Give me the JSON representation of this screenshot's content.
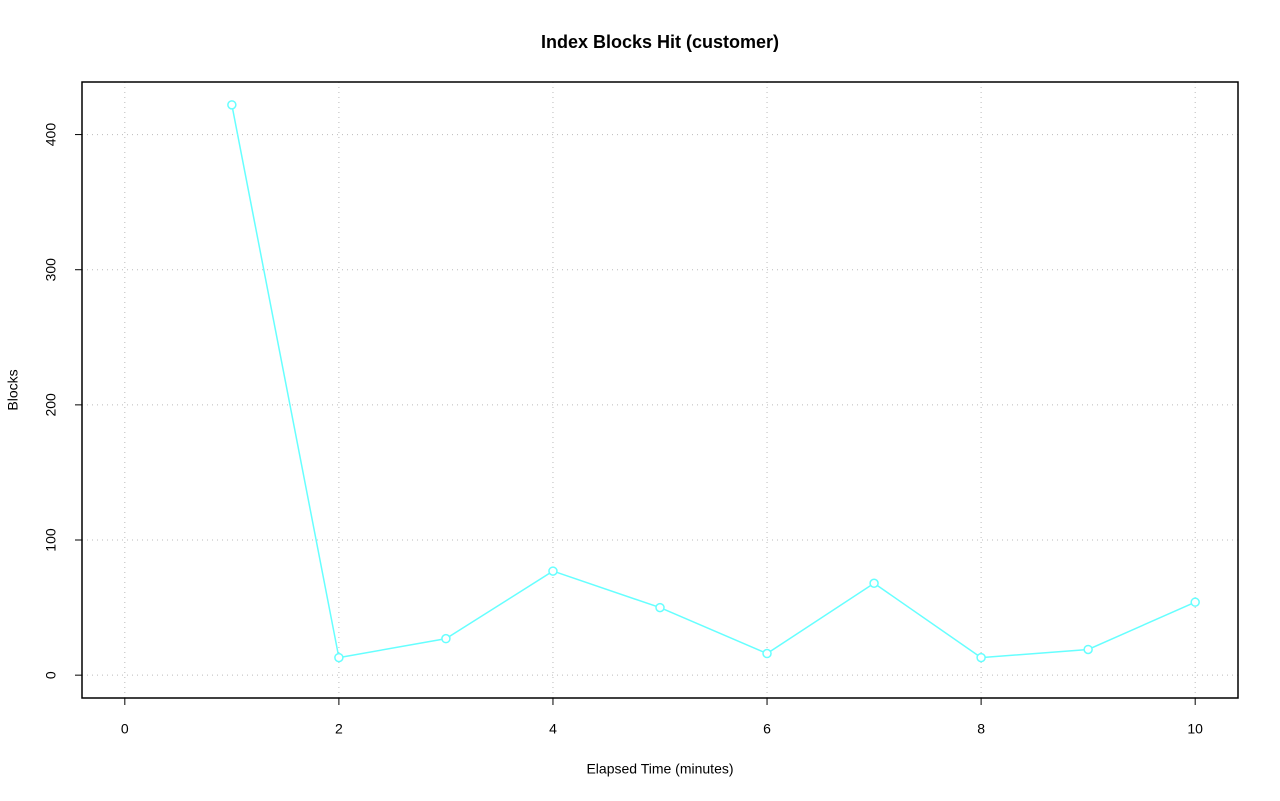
{
  "chart_data": {
    "type": "line",
    "title": "Index Blocks Hit (customer)",
    "x_label": "Elapsed Time (minutes)",
    "y_label": "Blocks",
    "x": [
      1,
      2,
      3,
      4,
      5,
      6,
      7,
      8,
      9,
      10
    ],
    "values": [
      422,
      13,
      27,
      77,
      50,
      16,
      68,
      13,
      19,
      54
    ],
    "color": "#66ffff",
    "xlim": [
      -0.4,
      10.4
    ],
    "xticks": [
      0,
      2,
      4,
      6,
      8,
      10
    ],
    "ylim": [
      -16.9,
      438.9
    ],
    "yticks": [
      0,
      100,
      200,
      300,
      400
    ],
    "grid": true
  }
}
